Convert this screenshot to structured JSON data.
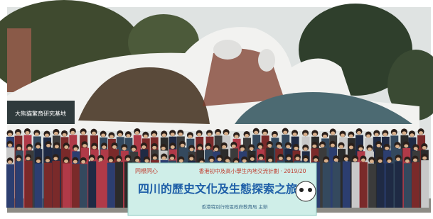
{
  "photo": {
    "building_sign": "大熊貓繁育研究基地",
    "banner": {
      "slogan": "同根同心",
      "programme": "香港初中及高小學生內地交流計劃 · 2019/20",
      "title": "四川的歷史文化及生態探索之旅",
      "organiser": "香港特別行政區政府教育局 主辦"
    }
  }
}
